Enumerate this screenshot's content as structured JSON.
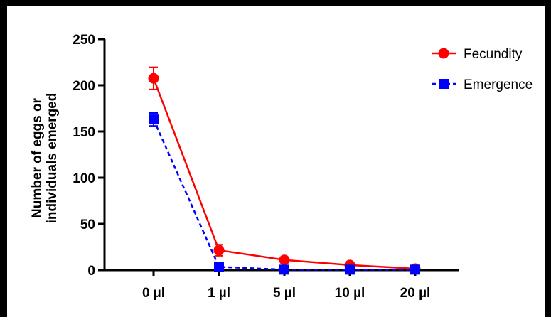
{
  "chart_data": {
    "type": "line",
    "title": "",
    "xlabel": "",
    "ylabel_lines": [
      "Number of eggs or",
      "individuals emerged"
    ],
    "categories": [
      "0 µl",
      "1 µl",
      "5 µl",
      "10 µl",
      "20 µl"
    ],
    "ylim": [
      0,
      250
    ],
    "yticks": [
      "0",
      "50",
      "100",
      "150",
      "200",
      "250"
    ],
    "legend_position": "top-right",
    "series": [
      {
        "name": "Fecundity",
        "values": [
          207.5,
          21.5,
          11,
          5.5,
          1.5
        ],
        "errors": [
          12,
          6,
          0,
          0,
          0
        ],
        "color": "#ff0000",
        "marker": "circle",
        "line": "solid"
      },
      {
        "name": "Emergence",
        "values": [
          163,
          3.5,
          0.5,
          0.5,
          0.5
        ],
        "errors": [
          7,
          3,
          0,
          0,
          0
        ],
        "color": "#0000ff",
        "marker": "square",
        "line": "dashed"
      }
    ]
  }
}
